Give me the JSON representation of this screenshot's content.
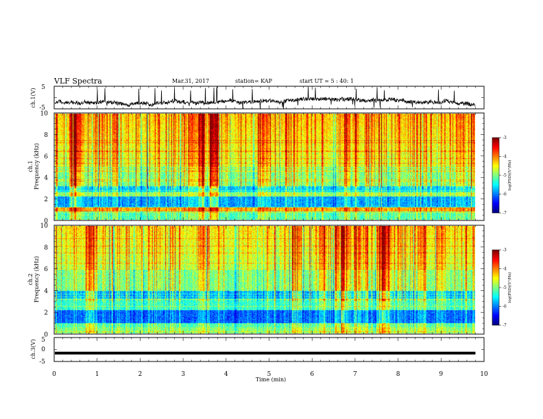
{
  "header": {
    "title": "VLF Spectra",
    "date": "Mar.31, 2017",
    "station": "station= KAP",
    "start_ut": "start  UT =  5 : 40: 1"
  },
  "chart_data": [
    {
      "type": "line",
      "panel": "ch1-waveform",
      "ylabel": "ch.1(V)",
      "ylim": [
        -5,
        5
      ],
      "y_ticks": [
        "5",
        "-5"
      ],
      "xlim": [
        0,
        10
      ],
      "x_extent_min": 9.8,
      "description_series": "noisy voltage trace fluctuating around about -2 V with spikes reaching ±5 V"
    },
    {
      "type": "heatmap",
      "panel": "ch1-spectrogram",
      "ylabel_top": "ch.1",
      "ylabel": "Frequency (kHz)",
      "ylim": [
        0,
        10
      ],
      "y_ticks": [
        "10",
        "8",
        "6",
        "4",
        "2",
        "0"
      ],
      "xlim": [
        0,
        10
      ],
      "colorbar": {
        "label": "log(PSD)(V²/Hz)",
        "range": [
          -7,
          -3
        ],
        "ticks": [
          "-3",
          "-4",
          "-5",
          "-6",
          "-7"
        ]
      }
    },
    {
      "type": "heatmap",
      "panel": "ch2-spectrogram",
      "ylabel_top": "ch.2",
      "ylabel": "Frequency (kHz)",
      "ylim": [
        0,
        10
      ],
      "y_ticks": [
        "10",
        "8",
        "6",
        "4",
        "2",
        "0"
      ],
      "xlim": [
        0,
        10
      ],
      "colorbar": {
        "label": "log(PSD)(V²/Hz)",
        "range": [
          -7,
          -3
        ],
        "ticks": [
          "-3",
          "-4",
          "-5",
          "-6",
          "-7"
        ]
      }
    },
    {
      "type": "line",
      "panel": "ch3-waveform",
      "ylabel": "ch.3(V)",
      "ylim": [
        -5,
        5
      ],
      "y_ticks": [
        "5",
        "0",
        "-5"
      ],
      "xlim": [
        0,
        10
      ],
      "series": [
        {
          "values_constant": -1.5
        }
      ]
    }
  ],
  "x_axis": {
    "label": "Time (min)",
    "ticks": [
      "0",
      "1",
      "2",
      "3",
      "4",
      "5",
      "6",
      "7",
      "8",
      "9",
      "10"
    ]
  }
}
